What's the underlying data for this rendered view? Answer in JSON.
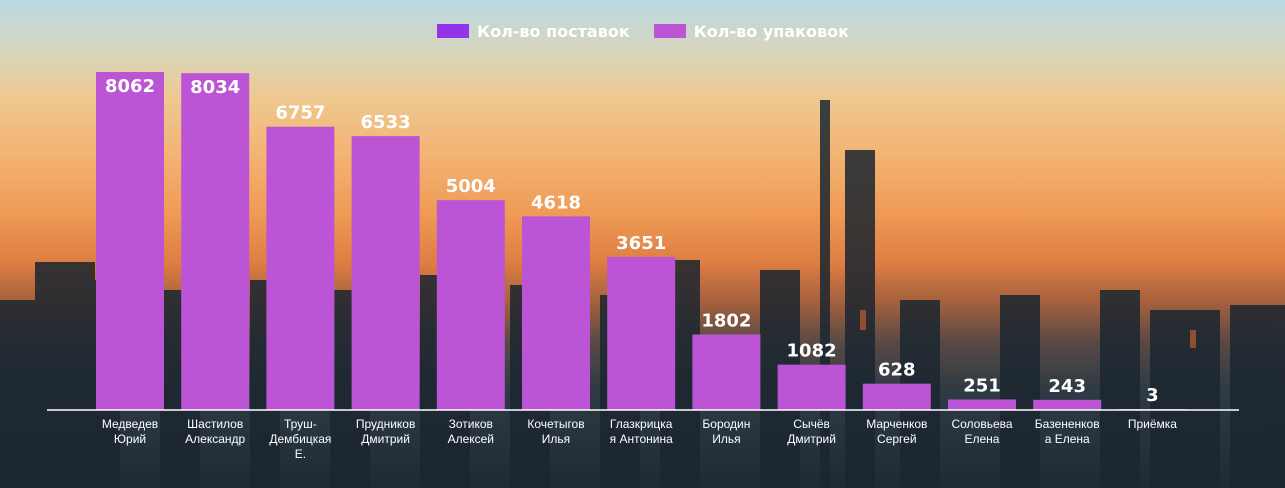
{
  "legend": [
    {
      "name": "Кол-во поставок",
      "color": "#9333ea"
    },
    {
      "name": "Кол-во упаковок",
      "color": "#bb55d6"
    }
  ],
  "chart_data": {
    "type": "bar",
    "categories": [
      [
        "Медведев",
        "Юрий"
      ],
      [
        "Шастилов",
        "Александр"
      ],
      [
        "Труш-",
        "Дембицкая",
        "Е."
      ],
      [
        "Прудников",
        "Дмитрий"
      ],
      [
        "Зотиков",
        "Алексей"
      ],
      [
        "Кочетыгов",
        "Илья"
      ],
      [
        "Глазкрицка",
        "я Антонина"
      ],
      [
        "Бородин",
        "Илья"
      ],
      [
        "Сычёв",
        "Дмитрий"
      ],
      [
        "Марченков",
        "Сергей"
      ],
      [
        "Соловьева",
        "Елена"
      ],
      [
        "Базененков",
        "а Елена"
      ],
      [
        "Приёмка"
      ]
    ],
    "series": [
      {
        "name": "Кол-во упаковок",
        "color": "#bb55d6",
        "values": [
          8062,
          8034,
          6757,
          6533,
          5004,
          4618,
          3651,
          1802,
          1082,
          628,
          251,
          243,
          3
        ],
        "labels": [
          "8062",
          "8034",
          "6757",
          "6533",
          "5004",
          "4618",
          "3651",
          "1802",
          "1082",
          "628",
          "251",
          "243",
          "3"
        ]
      }
    ],
    "legend_position": "top-center",
    "grid": false
  }
}
